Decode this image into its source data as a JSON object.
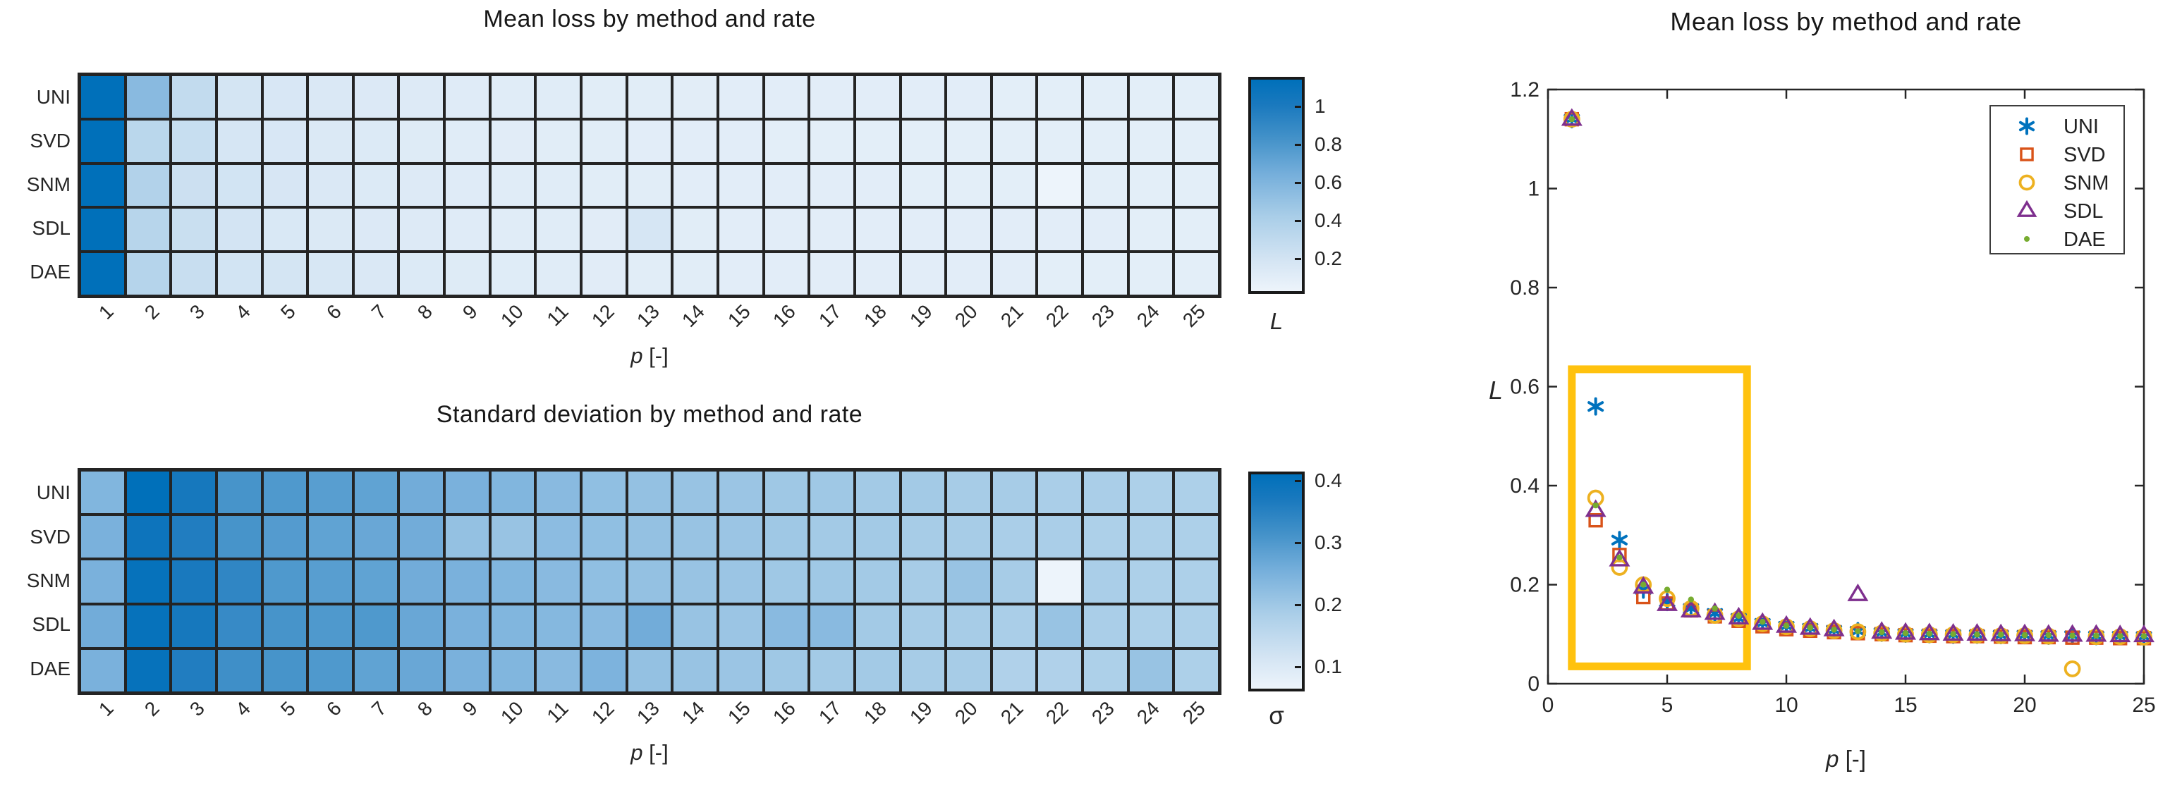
{
  "figure": {
    "background": "#ffffff",
    "text_color": "#262626",
    "grid_color": "#242424",
    "axis_color": "#262626",
    "highlight_color": "#FFC20E",
    "legend_border_color": "#3d3d3d",
    "series_colors": {
      "UNI": "#0072BD",
      "SVD": "#D95319",
      "SNM": "#EDB120",
      "SDL": "#7E2F8E",
      "DAE": "#77AC30"
    },
    "series_markers": {
      "UNI": "asterisk",
      "SVD": "square",
      "SNM": "circle",
      "SDL": "triangle",
      "DAE": "dot"
    },
    "colormap_stops": [
      [
        0,
        "#EDF4FB"
      ],
      [
        0.15,
        "#D3E4F3"
      ],
      [
        0.35,
        "#AACEE8"
      ],
      [
        0.55,
        "#76AFDB"
      ],
      [
        0.72,
        "#4492C9"
      ],
      [
        0.88,
        "#1A79BE"
      ],
      [
        1,
        "#0070BA"
      ]
    ]
  },
  "labels": {
    "p_symbol": "p",
    "p_unit": " [-]"
  },
  "chart_data": [
    {
      "id": "heatmap_mean",
      "type": "heatmap",
      "title": "Mean loss by method and rate",
      "xlabel": "p [-]",
      "rows": [
        "UNI",
        "SVD",
        "SNM",
        "SDL",
        "DAE"
      ],
      "columns": [
        1,
        2,
        3,
        4,
        5,
        6,
        7,
        8,
        9,
        10,
        11,
        12,
        13,
        14,
        15,
        16,
        17,
        18,
        19,
        20,
        21,
        22,
        23,
        24,
        25
      ],
      "colorbar_label": "L",
      "colorbar_ticks": [
        1,
        0.8,
        0.6,
        0.4,
        0.2
      ],
      "color_range": [
        0.03,
        1.14
      ],
      "matrix": [
        [
          1.14,
          0.56,
          0.29,
          0.19,
          0.165,
          0.152,
          0.142,
          0.132,
          0.122,
          0.116,
          0.112,
          0.108,
          0.106,
          0.103,
          0.101,
          0.1,
          0.099,
          0.099,
          0.098,
          0.098,
          0.097,
          0.097,
          0.096,
          0.096,
          0.095
        ],
        [
          1.14,
          0.33,
          0.26,
          0.175,
          0.162,
          0.148,
          0.136,
          0.127,
          0.116,
          0.11,
          0.107,
          0.104,
          0.102,
          0.1,
          0.098,
          0.097,
          0.096,
          0.096,
          0.095,
          0.094,
          0.094,
          0.093,
          0.093,
          0.092,
          0.092
        ],
        [
          1.14,
          0.375,
          0.235,
          0.2,
          0.172,
          0.152,
          0.138,
          0.131,
          0.121,
          0.115,
          0.111,
          0.107,
          0.105,
          0.102,
          0.1,
          0.099,
          0.099,
          0.098,
          0.097,
          0.097,
          0.096,
          0.03,
          0.095,
          0.095,
          0.094
        ],
        [
          1.14,
          0.35,
          0.25,
          0.195,
          0.16,
          0.147,
          0.142,
          0.133,
          0.122,
          0.116,
          0.112,
          0.109,
          0.18,
          0.104,
          0.102,
          0.101,
          0.1,
          0.1,
          0.099,
          0.099,
          0.098,
          0.098,
          0.098,
          0.097,
          0.097
        ],
        [
          1.14,
          0.36,
          0.255,
          0.2,
          0.19,
          0.17,
          0.152,
          0.137,
          0.125,
          0.117,
          0.113,
          0.109,
          0.106,
          0.104,
          0.102,
          0.101,
          0.1,
          0.099,
          0.099,
          0.098,
          0.098,
          0.097,
          0.097,
          0.096,
          0.096
        ]
      ]
    },
    {
      "id": "heatmap_std",
      "type": "heatmap",
      "title": "Standard deviation by method and rate",
      "xlabel": "p [-]",
      "rows": [
        "UNI",
        "SVD",
        "SNM",
        "SDL",
        "DAE"
      ],
      "columns": [
        1,
        2,
        3,
        4,
        5,
        6,
        7,
        8,
        9,
        10,
        11,
        12,
        13,
        14,
        15,
        16,
        17,
        18,
        19,
        20,
        21,
        22,
        23,
        24,
        25
      ],
      "colorbar_label": "σ",
      "colorbar_ticks": [
        0.4,
        0.3,
        0.2,
        0.1
      ],
      "color_range": [
        0.065,
        0.41
      ],
      "matrix": [
        [
          0.24,
          0.41,
          0.375,
          0.31,
          0.3,
          0.29,
          0.28,
          0.26,
          0.25,
          0.24,
          0.23,
          0.22,
          0.215,
          0.21,
          0.205,
          0.2,
          0.2,
          0.195,
          0.195,
          0.19,
          0.19,
          0.185,
          0.185,
          0.18,
          0.18
        ],
        [
          0.25,
          0.39,
          0.36,
          0.31,
          0.295,
          0.28,
          0.27,
          0.26,
          0.215,
          0.21,
          0.225,
          0.22,
          0.215,
          0.21,
          0.205,
          0.2,
          0.195,
          0.195,
          0.19,
          0.19,
          0.185,
          0.185,
          0.18,
          0.18,
          0.18
        ],
        [
          0.25,
          0.4,
          0.37,
          0.34,
          0.3,
          0.29,
          0.28,
          0.26,
          0.25,
          0.24,
          0.23,
          0.22,
          0.215,
          0.21,
          0.205,
          0.2,
          0.2,
          0.195,
          0.19,
          0.21,
          0.19,
          0.065,
          0.185,
          0.18,
          0.18
        ],
        [
          0.26,
          0.4,
          0.375,
          0.33,
          0.31,
          0.3,
          0.3,
          0.27,
          0.25,
          0.24,
          0.235,
          0.23,
          0.26,
          0.21,
          0.205,
          0.23,
          0.23,
          0.195,
          0.19,
          0.19,
          0.185,
          0.21,
          0.185,
          0.18,
          0.18
        ],
        [
          0.25,
          0.4,
          0.36,
          0.32,
          0.31,
          0.3,
          0.28,
          0.27,
          0.25,
          0.24,
          0.23,
          0.245,
          0.215,
          0.21,
          0.205,
          0.2,
          0.195,
          0.195,
          0.19,
          0.19,
          0.175,
          0.175,
          0.18,
          0.21,
          0.18
        ]
      ]
    },
    {
      "id": "scatter_mean",
      "type": "scatter",
      "title": "Mean loss by method and rate",
      "xlabel": "p [-]",
      "ylabel": "L",
      "xlim": [
        0,
        25
      ],
      "ylim": [
        0,
        1.2
      ],
      "xticks": [
        0,
        5,
        10,
        15,
        20,
        25
      ],
      "yticks": [
        0,
        0.2,
        0.4,
        0.6,
        0.8,
        1,
        1.2
      ],
      "legend_position": "northeast",
      "x": [
        1,
        2,
        3,
        4,
        5,
        6,
        7,
        8,
        9,
        10,
        11,
        12,
        13,
        14,
        15,
        16,
        17,
        18,
        19,
        20,
        21,
        22,
        23,
        24,
        25
      ],
      "series": [
        {
          "name": "UNI",
          "values": [
            1.14,
            0.56,
            0.29,
            0.19,
            0.165,
            0.152,
            0.142,
            0.132,
            0.122,
            0.116,
            0.112,
            0.108,
            0.106,
            0.103,
            0.101,
            0.1,
            0.099,
            0.099,
            0.098,
            0.098,
            0.097,
            0.097,
            0.096,
            0.096,
            0.095
          ]
        },
        {
          "name": "SVD",
          "values": [
            1.14,
            0.33,
            0.26,
            0.175,
            0.162,
            0.148,
            0.136,
            0.127,
            0.116,
            0.11,
            0.107,
            0.104,
            0.102,
            0.1,
            0.098,
            0.097,
            0.096,
            0.096,
            0.095,
            0.094,
            0.094,
            0.093,
            0.093,
            0.092,
            0.092
          ]
        },
        {
          "name": "SNM",
          "values": [
            1.14,
            0.375,
            0.235,
            0.2,
            0.172,
            0.152,
            0.138,
            0.131,
            0.121,
            0.115,
            0.111,
            0.107,
            0.105,
            0.102,
            0.1,
            0.099,
            0.099,
            0.098,
            0.097,
            0.097,
            0.096,
            0.03,
            0.095,
            0.095,
            0.094
          ]
        },
        {
          "name": "SDL",
          "values": [
            1.14,
            0.35,
            0.25,
            0.195,
            0.16,
            0.147,
            0.142,
            0.133,
            0.122,
            0.116,
            0.112,
            0.109,
            0.18,
            0.104,
            0.102,
            0.101,
            0.1,
            0.1,
            0.099,
            0.099,
            0.098,
            0.098,
            0.098,
            0.097,
            0.097
          ]
        },
        {
          "name": "DAE",
          "values": [
            1.14,
            0.36,
            0.255,
            0.2,
            0.19,
            0.17,
            0.152,
            0.137,
            0.125,
            0.117,
            0.113,
            0.109,
            0.106,
            0.104,
            0.102,
            0.101,
            0.1,
            0.099,
            0.099,
            0.098,
            0.098,
            0.097,
            0.097,
            0.096,
            0.096
          ]
        }
      ],
      "highlight_rect": {
        "x0": 1,
        "x1": 8.35,
        "y0": 0.035,
        "y1": 0.635
      }
    }
  ]
}
